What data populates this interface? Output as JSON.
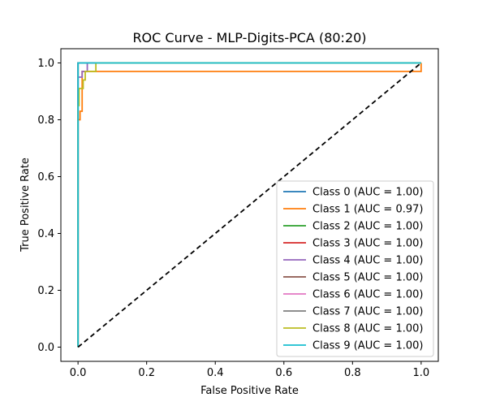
{
  "chart_data": {
    "type": "line",
    "title": "ROC Curve - MLP-Digits-PCA (80:20)",
    "xlabel": "False Positive Rate",
    "ylabel": "True Positive Rate",
    "xlim": [
      -0.05,
      1.05
    ],
    "ylim": [
      -0.05,
      1.05
    ],
    "xticks": [
      "0.0",
      "0.2",
      "0.4",
      "0.6",
      "0.8",
      "1.0"
    ],
    "yticks": [
      "0.0",
      "0.2",
      "0.4",
      "0.6",
      "0.8",
      "1.0"
    ],
    "grid": false,
    "legend_position": "lower right",
    "series": [
      {
        "name": "Class 0 (AUC = 1.00)",
        "color": "#1f77b4",
        "x": [
          0,
          0,
          1
        ],
        "y": [
          0,
          1,
          1
        ]
      },
      {
        "name": "Class 1 (AUC = 0.97)",
        "color": "#ff7f0e",
        "x": [
          0,
          0,
          0.006,
          0.006,
          0.012,
          0.012,
          1,
          1
        ],
        "y": [
          0,
          0.8,
          0.8,
          0.83,
          0.83,
          0.97,
          0.97,
          1
        ]
      },
      {
        "name": "Class 2 (AUC = 1.00)",
        "color": "#2ca02c",
        "x": [
          0,
          0,
          1
        ],
        "y": [
          0,
          1,
          1
        ]
      },
      {
        "name": "Class 3 (AUC = 1.00)",
        "color": "#d62728",
        "x": [
          0,
          0,
          1
        ],
        "y": [
          0,
          1,
          1
        ]
      },
      {
        "name": "Class 4 (AUC = 1.00)",
        "color": "#9467bd",
        "x": [
          0,
          0,
          0.012,
          0.012,
          0.027,
          0.027,
          1
        ],
        "y": [
          0,
          0.95,
          0.95,
          0.97,
          0.97,
          1,
          1
        ]
      },
      {
        "name": "Class 5 (AUC = 1.00)",
        "color": "#8c564b",
        "x": [
          0,
          0,
          1
        ],
        "y": [
          0,
          1,
          1
        ]
      },
      {
        "name": "Class 6 (AUC = 1.00)",
        "color": "#e377c2",
        "x": [
          0,
          0,
          1
        ],
        "y": [
          0,
          1,
          1
        ]
      },
      {
        "name": "Class 7 (AUC = 1.00)",
        "color": "#7f7f7f",
        "x": [
          0,
          0,
          1
        ],
        "y": [
          0,
          1,
          1
        ]
      },
      {
        "name": "Class 8 (AUC = 1.00)",
        "color": "#bcbd22",
        "x": [
          0,
          0,
          0.003,
          0.003,
          0.015,
          0.015,
          0.021,
          0.021,
          0.052,
          0.052,
          1
        ],
        "y": [
          0,
          0.85,
          0.85,
          0.91,
          0.91,
          0.94,
          0.94,
          0.97,
          0.97,
          1,
          1
        ]
      },
      {
        "name": "Class 9 (AUC = 1.00)",
        "color": "#17becf",
        "x": [
          0,
          0,
          1
        ],
        "y": [
          0,
          1,
          1
        ]
      }
    ],
    "reference_line": {
      "x": [
        0,
        1
      ],
      "y": [
        0,
        1
      ],
      "color": "#000000",
      "style": "dashed"
    }
  }
}
